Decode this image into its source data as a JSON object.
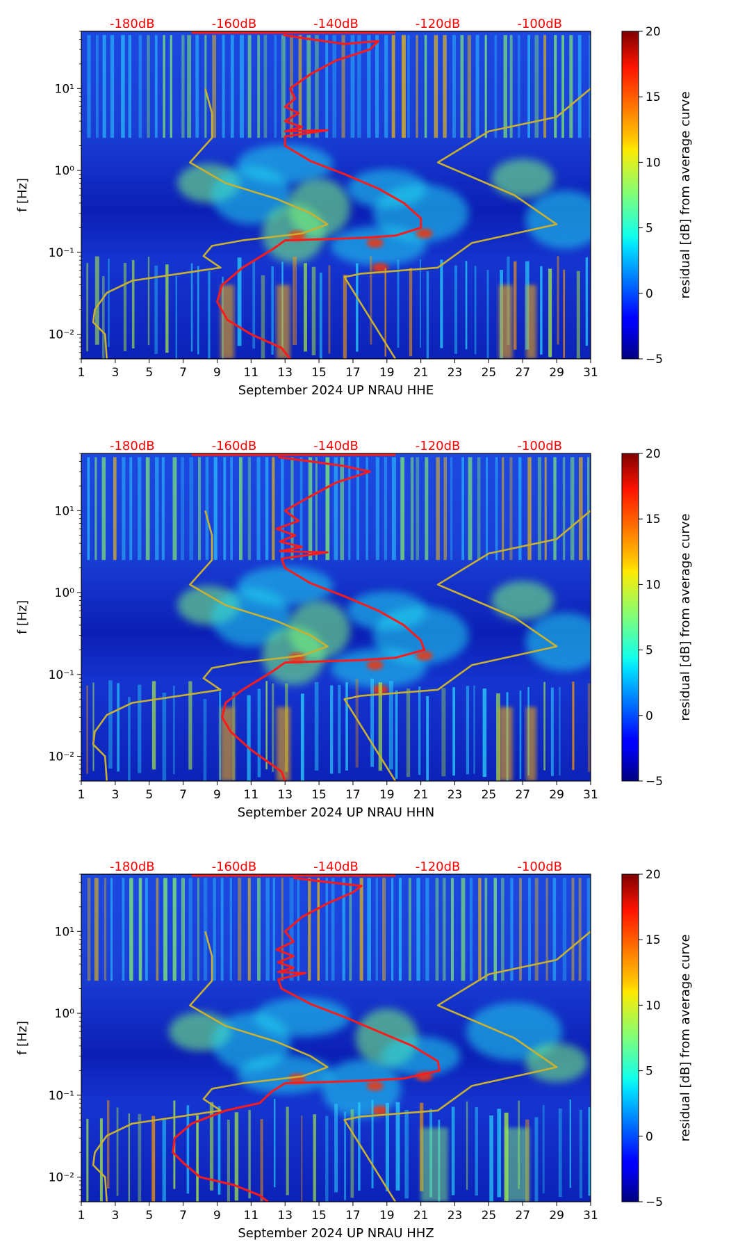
{
  "chart_data": [
    {
      "type": "heatmap",
      "title": "",
      "xlabel": "September 2024 UP NRAU  HHE",
      "ylabel": "f [Hz]",
      "xlim": [
        1,
        31
      ],
      "ylim": [
        0.005,
        50
      ],
      "yscale": "log",
      "x_ticks": [
        1,
        3,
        5,
        7,
        9,
        11,
        13,
        15,
        17,
        19,
        21,
        23,
        25,
        27,
        29,
        31
      ],
      "y_ticks": [
        {
          "value": 0.01,
          "label": "10⁻²"
        },
        {
          "value": 0.1,
          "label": "10⁻¹"
        },
        {
          "value": 1,
          "label": "10⁰"
        },
        {
          "value": 10,
          "label": "10¹"
        }
      ],
      "db_ticks": [
        {
          "x": 4,
          "label": "-180dB"
        },
        {
          "x": 10,
          "label": "-160dB"
        },
        {
          "x": 16,
          "label": "-140dB"
        },
        {
          "x": 22,
          "label": "-120dB"
        },
        {
          "x": 28,
          "label": "-100dB"
        }
      ],
      "colorbar": {
        "label": "residual [dB] from average curve",
        "min": -5,
        "max": 20,
        "ticks": [
          -5,
          0,
          5,
          10,
          15,
          20
        ]
      },
      "red_curve": [
        [
          12.9,
          45
        ],
        [
          14.5,
          40
        ],
        [
          16.5,
          35
        ],
        [
          18.5,
          38
        ],
        [
          18.0,
          30
        ],
        [
          16.0,
          22
        ],
        [
          14.5,
          15
        ],
        [
          13.3,
          10
        ],
        [
          13.6,
          7.5
        ],
        [
          13.0,
          6
        ],
        [
          13.8,
          5
        ],
        [
          13.0,
          4
        ],
        [
          14.0,
          3.4
        ],
        [
          13.0,
          3
        ],
        [
          15.5,
          3.1
        ],
        [
          13.0,
          2.6
        ],
        [
          13.0,
          2.0
        ],
        [
          14.5,
          1.3
        ],
        [
          16.5,
          0.9
        ],
        [
          18.5,
          0.6
        ],
        [
          20.0,
          0.4
        ],
        [
          21.0,
          0.26
        ],
        [
          21.0,
          0.2
        ],
        [
          19.5,
          0.16
        ],
        [
          17.5,
          0.15
        ],
        [
          15.5,
          0.145
        ],
        [
          13.0,
          0.14
        ],
        [
          12.3,
          0.11
        ],
        [
          10.5,
          0.065
        ],
        [
          9.3,
          0.04
        ],
        [
          9.0,
          0.025
        ],
        [
          9.6,
          0.015
        ],
        [
          11.0,
          0.01
        ],
        [
          12.8,
          0.0068
        ],
        [
          13.3,
          0.005
        ]
      ],
      "yellow_curve_low": [
        [
          8.3,
          10
        ],
        [
          8.7,
          5
        ],
        [
          8.7,
          2.5
        ],
        [
          7.4,
          1.25
        ],
        [
          9.5,
          0.7
        ],
        [
          12.5,
          0.45
        ],
        [
          14.5,
          0.3
        ],
        [
          15.5,
          0.22
        ],
        [
          14.0,
          0.17
        ],
        [
          10.5,
          0.14
        ],
        [
          8.7,
          0.12
        ],
        [
          8.2,
          0.09
        ],
        [
          9.2,
          0.065
        ],
        [
          4.0,
          0.045
        ],
        [
          2.5,
          0.032
        ],
        [
          1.8,
          0.02
        ],
        [
          1.7,
          0.014
        ],
        [
          2.4,
          0.01
        ],
        [
          2.5,
          0.005
        ]
      ],
      "yellow_curve_high": [
        [
          31.0,
          10
        ],
        [
          29.0,
          4.5
        ],
        [
          25.0,
          3
        ],
        [
          22.0,
          1.25
        ],
        [
          26.5,
          0.5
        ],
        [
          29.0,
          0.22
        ],
        [
          24.0,
          0.13
        ],
        [
          22.0,
          0.065
        ],
        [
          17.5,
          0.055
        ],
        [
          16.5,
          0.05
        ],
        [
          19.5,
          0.005
        ]
      ]
    },
    {
      "type": "heatmap",
      "title": "",
      "xlabel": "September 2024 UP NRAU  HHN",
      "ylabel": "f [Hz]",
      "xlim": [
        1,
        31
      ],
      "ylim": [
        0.005,
        50
      ],
      "yscale": "log",
      "x_ticks": [
        1,
        3,
        5,
        7,
        9,
        11,
        13,
        15,
        17,
        19,
        21,
        23,
        25,
        27,
        29,
        31
      ],
      "y_ticks": [
        {
          "value": 0.01,
          "label": "10⁻²"
        },
        {
          "value": 0.1,
          "label": "10⁻¹"
        },
        {
          "value": 1,
          "label": "10⁰"
        },
        {
          "value": 10,
          "label": "10¹"
        }
      ],
      "db_ticks": [
        {
          "x": 4,
          "label": "-180dB"
        },
        {
          "x": 10,
          "label": "-160dB"
        },
        {
          "x": 16,
          "label": "-140dB"
        },
        {
          "x": 22,
          "label": "-120dB"
        },
        {
          "x": 28,
          "label": "-100dB"
        }
      ],
      "colorbar": {
        "label": "residual [dB] from average curve",
        "min": -5,
        "max": 20,
        "ticks": [
          -5,
          0,
          5,
          10,
          15,
          20
        ]
      },
      "red_curve": [
        [
          12.6,
          45
        ],
        [
          14.5,
          40
        ],
        [
          16.5,
          35
        ],
        [
          18.0,
          30
        ],
        [
          16.0,
          22
        ],
        [
          14.5,
          15
        ],
        [
          13.0,
          10
        ],
        [
          13.8,
          7.5
        ],
        [
          12.5,
          6
        ],
        [
          13.6,
          5
        ],
        [
          12.7,
          4.2
        ],
        [
          14.0,
          3.6
        ],
        [
          12.7,
          3.2
        ],
        [
          15.5,
          3.1
        ],
        [
          12.8,
          2.6
        ],
        [
          13.0,
          2.0
        ],
        [
          14.5,
          1.3
        ],
        [
          16.5,
          0.9
        ],
        [
          18.5,
          0.6
        ],
        [
          20.0,
          0.4
        ],
        [
          21.0,
          0.26
        ],
        [
          21.2,
          0.2
        ],
        [
          19.5,
          0.16
        ],
        [
          17.5,
          0.15
        ],
        [
          15.5,
          0.145
        ],
        [
          13.0,
          0.14
        ],
        [
          12.3,
          0.11
        ],
        [
          10.5,
          0.065
        ],
        [
          9.5,
          0.045
        ],
        [
          9.3,
          0.03
        ],
        [
          9.8,
          0.02
        ],
        [
          11.0,
          0.012
        ],
        [
          12.8,
          0.0065
        ],
        [
          13.0,
          0.005
        ]
      ],
      "yellow_curve_low": [
        [
          8.3,
          10
        ],
        [
          8.7,
          5
        ],
        [
          8.7,
          2.5
        ],
        [
          7.4,
          1.25
        ],
        [
          9.5,
          0.7
        ],
        [
          12.5,
          0.45
        ],
        [
          14.5,
          0.3
        ],
        [
          15.5,
          0.22
        ],
        [
          14.0,
          0.17
        ],
        [
          10.5,
          0.14
        ],
        [
          8.7,
          0.12
        ],
        [
          8.2,
          0.09
        ],
        [
          9.2,
          0.065
        ],
        [
          4.0,
          0.045
        ],
        [
          2.5,
          0.032
        ],
        [
          1.8,
          0.02
        ],
        [
          1.7,
          0.014
        ],
        [
          2.4,
          0.01
        ],
        [
          2.5,
          0.005
        ]
      ],
      "yellow_curve_high": [
        [
          31.0,
          10
        ],
        [
          29.0,
          4.5
        ],
        [
          25.0,
          3
        ],
        [
          22.0,
          1.25
        ],
        [
          26.5,
          0.5
        ],
        [
          29.0,
          0.22
        ],
        [
          24.0,
          0.13
        ],
        [
          22.0,
          0.065
        ],
        [
          17.5,
          0.055
        ],
        [
          16.5,
          0.05
        ],
        [
          19.5,
          0.005
        ]
      ]
    },
    {
      "type": "heatmap",
      "title": "",
      "xlabel": "September 2024 UP NRAU  HHZ",
      "ylabel": "f [Hz]",
      "xlim": [
        1,
        31
      ],
      "ylim": [
        0.005,
        50
      ],
      "yscale": "log",
      "x_ticks": [
        1,
        3,
        5,
        7,
        9,
        11,
        13,
        15,
        17,
        19,
        21,
        23,
        25,
        27,
        29,
        31
      ],
      "y_ticks": [
        {
          "value": 0.01,
          "label": "10⁻²"
        },
        {
          "value": 0.1,
          "label": "10⁻¹"
        },
        {
          "value": 1,
          "label": "10⁰"
        },
        {
          "value": 10,
          "label": "10¹"
        }
      ],
      "db_ticks": [
        {
          "x": 4,
          "label": "-180dB"
        },
        {
          "x": 10,
          "label": "-160dB"
        },
        {
          "x": 16,
          "label": "-140dB"
        },
        {
          "x": 22,
          "label": "-120dB"
        },
        {
          "x": 28,
          "label": "-100dB"
        }
      ],
      "colorbar": {
        "label": "residual [dB] from average curve",
        "min": -5,
        "max": 20,
        "ticks": [
          -5,
          0,
          5,
          10,
          15,
          20
        ]
      },
      "red_curve": [
        [
          13.5,
          45
        ],
        [
          15.5,
          40
        ],
        [
          17.5,
          36
        ],
        [
          17.0,
          30
        ],
        [
          15.5,
          22
        ],
        [
          14.0,
          15
        ],
        [
          13.0,
          10
        ],
        [
          13.5,
          7.5
        ],
        [
          12.5,
          6
        ],
        [
          13.5,
          5
        ],
        [
          12.6,
          4.2
        ],
        [
          13.5,
          3.6
        ],
        [
          12.6,
          3.2
        ],
        [
          14.2,
          3.1
        ],
        [
          12.6,
          2.6
        ],
        [
          12.8,
          2.0
        ],
        [
          14.5,
          1.3
        ],
        [
          16.5,
          0.9
        ],
        [
          18.5,
          0.6
        ],
        [
          20.5,
          0.4
        ],
        [
          22.0,
          0.26
        ],
        [
          22.1,
          0.2
        ],
        [
          20.0,
          0.16
        ],
        [
          17.5,
          0.15
        ],
        [
          15.5,
          0.145
        ],
        [
          13.0,
          0.14
        ],
        [
          12.2,
          0.11
        ],
        [
          11.5,
          0.08
        ],
        [
          9.5,
          0.065
        ],
        [
          7.5,
          0.045
        ],
        [
          6.5,
          0.03
        ],
        [
          6.4,
          0.02
        ],
        [
          7.0,
          0.015
        ],
        [
          8.0,
          0.01
        ],
        [
          10.0,
          0.008
        ],
        [
          11.5,
          0.006
        ],
        [
          12.0,
          0.005
        ]
      ],
      "yellow_curve_low": [
        [
          8.3,
          10
        ],
        [
          8.7,
          5
        ],
        [
          8.7,
          2.5
        ],
        [
          7.4,
          1.25
        ],
        [
          9.5,
          0.7
        ],
        [
          12.5,
          0.45
        ],
        [
          14.5,
          0.3
        ],
        [
          15.5,
          0.22
        ],
        [
          14.0,
          0.17
        ],
        [
          10.5,
          0.14
        ],
        [
          8.7,
          0.12
        ],
        [
          8.2,
          0.09
        ],
        [
          9.2,
          0.065
        ],
        [
          4.0,
          0.045
        ],
        [
          2.5,
          0.032
        ],
        [
          1.8,
          0.02
        ],
        [
          1.7,
          0.014
        ],
        [
          2.4,
          0.01
        ],
        [
          2.5,
          0.005
        ]
      ],
      "yellow_curve_high": [
        [
          31.0,
          10
        ],
        [
          29.0,
          4.5
        ],
        [
          25.0,
          3
        ],
        [
          22.0,
          1.25
        ],
        [
          26.5,
          0.5
        ],
        [
          29.0,
          0.22
        ],
        [
          24.0,
          0.13
        ],
        [
          22.0,
          0.065
        ],
        [
          17.5,
          0.055
        ],
        [
          16.5,
          0.05
        ],
        [
          19.5,
          0.005
        ]
      ]
    }
  ],
  "colors": {
    "red_curve": "#ff1a1a",
    "yellow_curve": "#c8b032",
    "db_text": "#ff0000"
  }
}
